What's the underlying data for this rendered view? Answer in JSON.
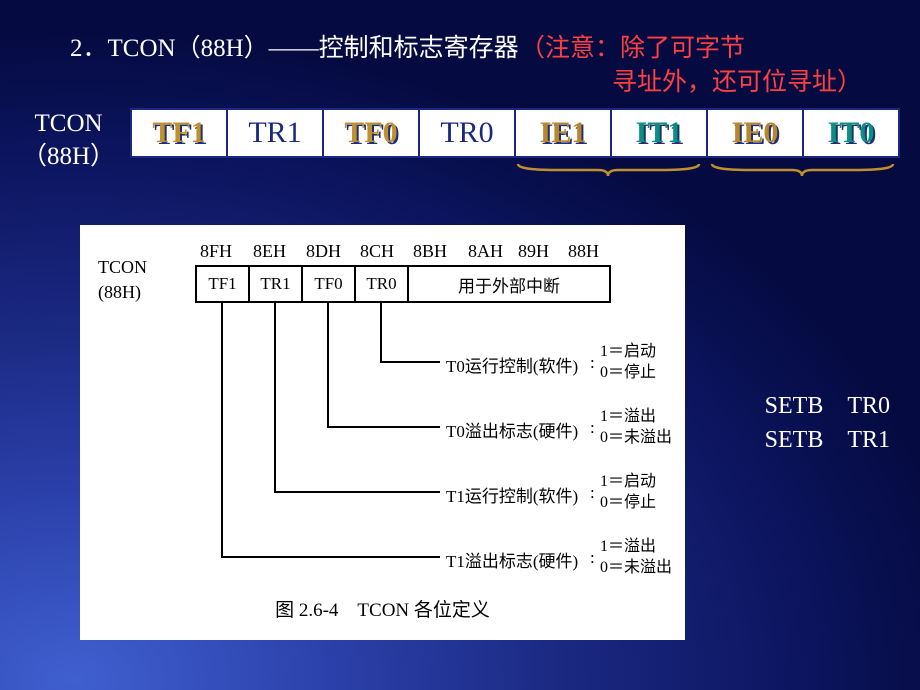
{
  "title": {
    "number": "2．",
    "main": "TCON（88H）——控制和标志寄存器",
    "note_line1": "（注意：除了可字节",
    "note_line2": "寻址外，还可位寻址）",
    "color_main": "#ffffff",
    "color_note": "#ff4040"
  },
  "register_label": {
    "line1": "TCON",
    "line2": "（88H）"
  },
  "bits": [
    {
      "name": "TF1",
      "color": "#c09030",
      "shadow": "#203070"
    },
    {
      "name": "TR1",
      "color": "#1a2880",
      "shadow": "none"
    },
    {
      "name": "TF0",
      "color": "#c09030",
      "shadow": "#203070"
    },
    {
      "name": "TR0",
      "color": "#1a2880",
      "shadow": "none"
    },
    {
      "name": "IE1",
      "color": "#b8862b",
      "shadow": "#203070"
    },
    {
      "name": "IT1",
      "color": "#0a9080",
      "shadow": "#203070"
    },
    {
      "name": "IE0",
      "color": "#b8862b",
      "shadow": "#203070"
    },
    {
      "name": "IT0",
      "color": "#0a9080",
      "shadow": "#203070"
    }
  ],
  "brace_color": "#c09030",
  "diagram": {
    "bg": "#ffffff",
    "label_reg": "TCON",
    "label_addr": "(88H)",
    "addresses": [
      "8FH",
      "8EH",
      "8DH",
      "8CH",
      "8BH",
      "8AH",
      "89H",
      "88H"
    ],
    "bits2": [
      "TF1",
      "TR1",
      "TF0",
      "TR0"
    ],
    "ext_interrupt": "用于外部中断",
    "lines": [
      {
        "text": "T0运行控制(软件)",
        "v1": "1＝启动",
        "v0": "0＝停止"
      },
      {
        "text": "T0溢出标志(硬件)",
        "v1": "1＝溢出",
        "v0": "0＝未溢出"
      },
      {
        "text": "T1运行控制(软件)",
        "v1": "1＝启动",
        "v0": "0＝停止"
      },
      {
        "text": "T1溢出标志(硬件)",
        "v1": "1＝溢出",
        "v0": "0＝未溢出"
      }
    ],
    "caption": "图 2.6-4　TCON 各位定义"
  },
  "side_code": {
    "line1": "SETB　TR0",
    "line2": "SETB　TR1"
  }
}
